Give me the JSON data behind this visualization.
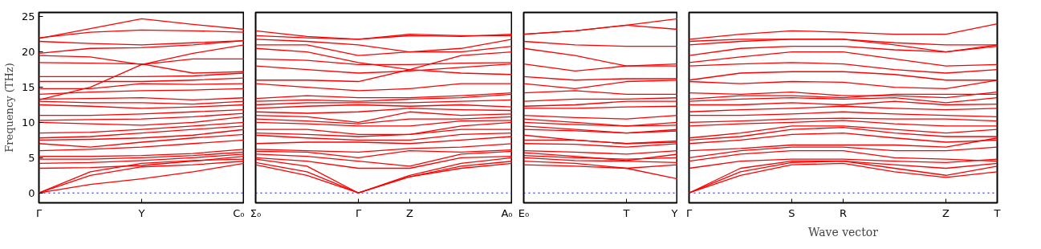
{
  "chart_data": [
    {
      "type": "line",
      "ylabel": "Frequency (THz)",
      "color": "#ff0000",
      "categories": [
        "Γ",
        null,
        "Y",
        null,
        "C₀"
      ],
      "ylim": [
        -1.4,
        25.6
      ],
      "yticks": [
        0,
        5,
        10,
        15,
        20,
        25
      ],
      "grid": false,
      "ref_lines": [
        {
          "axis": "y",
          "value": 0,
          "label": null,
          "color": "#0000ff",
          "line_style": "dotted"
        }
      ],
      "series": [
        {
          "values": [
            0,
            1.2,
            2.0,
            3.0,
            4.2
          ]
        },
        {
          "values": [
            0,
            2.5,
            3.7,
            4.0,
            4.5
          ]
        },
        {
          "values": [
            0,
            3.0,
            4.2,
            4.6,
            4.8
          ]
        },
        {
          "values": [
            3.5,
            3.6,
            3.9,
            4.5,
            5.2
          ]
        },
        {
          "values": [
            4.2,
            4.3,
            4.6,
            5.0,
            5.5
          ]
        },
        {
          "values": [
            4.8,
            4.8,
            5.0,
            5.3,
            5.8
          ]
        },
        {
          "values": [
            5.2,
            5.2,
            5.3,
            5.6,
            6.2
          ]
        },
        {
          "values": [
            6.0,
            6.2,
            6.5,
            7.0,
            7.5
          ]
        },
        {
          "values": [
            7.0,
            6.5,
            7.2,
            7.8,
            8.3
          ]
        },
        {
          "values": [
            7.5,
            7.6,
            7.8,
            8.2,
            9.0
          ]
        },
        {
          "values": [
            7.8,
            8.0,
            8.5,
            9.0,
            9.5
          ]
        },
        {
          "values": [
            8.5,
            8.6,
            9.0,
            9.5,
            10.0
          ]
        },
        {
          "values": [
            10.0,
            9.8,
            9.6,
            10.0,
            10.8
          ]
        },
        {
          "values": [
            10.3,
            10.4,
            10.5,
            10.8,
            11.3
          ]
        },
        {
          "values": [
            11.0,
            11.0,
            11.2,
            11.5,
            11.8
          ]
        },
        {
          "values": [
            12.5,
            12.3,
            12.0,
            12.2,
            12.5
          ]
        },
        {
          "values": [
            13.0,
            12.8,
            12.8,
            12.6,
            13.0
          ]
        },
        {
          "values": [
            13.3,
            13.4,
            13.5,
            13.2,
            13.5
          ]
        },
        {
          "values": [
            14.0,
            14.3,
            14.5,
            14.6,
            14.8
          ]
        },
        {
          "values": [
            14.8,
            14.8,
            15.5,
            15.4,
            15.5
          ]
        },
        {
          "values": [
            15.8,
            15.8,
            15.8,
            16.0,
            16.3
          ]
        },
        {
          "values": [
            16.5,
            16.5,
            16.5,
            16.6,
            17.0
          ]
        },
        {
          "values": [
            13.2,
            15.0,
            18.2,
            19.8,
            21.0
          ]
        },
        {
          "values": [
            18.5,
            18.4,
            18.3,
            17.0,
            17.2
          ]
        },
        {
          "values": [
            19.5,
            19.3,
            18.2,
            19.0,
            19.0
          ]
        },
        {
          "values": [
            19.8,
            20.5,
            20.6,
            21.0,
            21.6
          ]
        },
        {
          "values": [
            21.5,
            21.2,
            21.0,
            21.3,
            21.6
          ]
        },
        {
          "values": [
            22.0,
            22.8,
            23.1,
            23.0,
            22.8
          ]
        },
        {
          "values": [
            21.9,
            23.3,
            24.7,
            23.9,
            23.2
          ]
        }
      ]
    },
    {
      "type": "line",
      "color": "#ff0000",
      "categories": [
        "Σ₀",
        null,
        "Γ",
        "Z",
        null,
        "A₀"
      ],
      "ylim": [
        -1.4,
        25.6
      ],
      "yticks": [
        0,
        5,
        10,
        15,
        20,
        25
      ],
      "tick_labels": "x",
      "grid": false,
      "ref_lines": [
        {
          "axis": "y",
          "value": 0,
          "label": null,
          "color": "#0000ff",
          "line_style": "dotted"
        }
      ],
      "series": [
        {
          "values": [
            4.0,
            2.5,
            0,
            2.3,
            3.5,
            4.2
          ]
        },
        {
          "values": [
            4.3,
            3.0,
            0,
            2.3,
            3.8,
            4.5
          ]
        },
        {
          "values": [
            4.8,
            3.8,
            0,
            2.5,
            4.2,
            5.0
          ]
        },
        {
          "values": [
            5.0,
            4.5,
            3.5,
            3.5,
            5.0,
            5.2
          ]
        },
        {
          "values": [
            5.5,
            5.2,
            4.5,
            3.8,
            5.5,
            5.9
          ]
        },
        {
          "values": [
            5.9,
            5.8,
            5.0,
            6.0,
            5.8,
            6.1
          ]
        },
        {
          "values": [
            6.2,
            6.0,
            5.8,
            6.3,
            6.5,
            7.0
          ]
        },
        {
          "values": [
            7.0,
            7.2,
            7.2,
            7.0,
            7.5,
            8.0
          ]
        },
        {
          "values": [
            8.2,
            7.8,
            7.5,
            7.5,
            8.3,
            8.5
          ]
        },
        {
          "values": [
            8.5,
            8.3,
            8.0,
            8.3,
            9.0,
            9.0
          ]
        },
        {
          "values": [
            9.0,
            9.0,
            8.3,
            8.3,
            9.5,
            10.0
          ]
        },
        {
          "values": [
            10.0,
            9.8,
            9.5,
            9.5,
            10.2,
            10.3
          ]
        },
        {
          "values": [
            10.5,
            10.2,
            9.8,
            10.5,
            10.5,
            10.8
          ]
        },
        {
          "values": [
            11.0,
            10.8,
            10.0,
            11.5,
            11.0,
            11.2
          ]
        },
        {
          "values": [
            11.5,
            11.3,
            11.5,
            12.0,
            11.8,
            11.7
          ]
        },
        {
          "values": [
            12.0,
            12.3,
            12.5,
            12.3,
            12.5,
            12.2
          ]
        },
        {
          "values": [
            12.5,
            12.8,
            12.8,
            12.8,
            13.0,
            13.2
          ]
        },
        {
          "values": [
            13.0,
            13.2,
            13.0,
            13.3,
            13.5,
            14.0
          ]
        },
        {
          "values": [
            13.4,
            13.8,
            13.5,
            13.5,
            13.8,
            14.2
          ]
        },
        {
          "values": [
            15.5,
            15.0,
            14.5,
            14.8,
            15.5,
            15.5
          ]
        },
        {
          "values": [
            16.0,
            16.0,
            15.8,
            17.5,
            17.0,
            16.8
          ]
        },
        {
          "values": [
            18.0,
            17.5,
            17.0,
            17.3,
            17.8,
            18.3
          ]
        },
        {
          "values": [
            19.0,
            18.8,
            18.2,
            18.2,
            18.4,
            18.5
          ]
        },
        {
          "values": [
            20.5,
            20.0,
            18.5,
            17.5,
            19.5,
            20.0
          ]
        },
        {
          "values": [
            21.0,
            21.0,
            19.5,
            20.0,
            20.0,
            20.8
          ]
        },
        {
          "values": [
            21.8,
            21.5,
            21.0,
            20.0,
            20.5,
            21.8
          ]
        },
        {
          "values": [
            22.3,
            22.0,
            21.8,
            22.3,
            22.2,
            22.5
          ]
        },
        {
          "values": [
            23.0,
            22.2,
            21.8,
            22.5,
            22.3,
            22.3
          ]
        }
      ]
    },
    {
      "type": "line",
      "color": "#ff0000",
      "categories": [
        "E₀",
        null,
        "T",
        "Y"
      ],
      "ylim": [
        -1.4,
        25.6
      ],
      "yticks": [
        0,
        5,
        10,
        15,
        20,
        25
      ],
      "tick_labels": "x",
      "grid": false,
      "ref_lines": [
        {
          "axis": "y",
          "value": 0,
          "label": null,
          "color": "#0000ff",
          "line_style": "dotted"
        }
      ],
      "series": [
        {
          "values": [
            4.0,
            3.8,
            3.5,
            2.0
          ]
        },
        {
          "values": [
            4.5,
            4.2,
            3.5,
            4.0
          ]
        },
        {
          "values": [
            5.0,
            4.6,
            4.5,
            4.3
          ]
        },
        {
          "values": [
            5.3,
            5.0,
            4.8,
            5.0
          ]
        },
        {
          "values": [
            5.7,
            5.2,
            4.6,
            5.5
          ]
        },
        {
          "values": [
            6.0,
            5.8,
            5.5,
            6.0
          ]
        },
        {
          "values": [
            7.0,
            6.9,
            6.5,
            7.0
          ]
        },
        {
          "values": [
            7.5,
            7.5,
            7.0,
            7.4
          ]
        },
        {
          "values": [
            8.2,
            7.5,
            7.0,
            7.2
          ]
        },
        {
          "values": [
            9.0,
            8.8,
            8.5,
            9.0
          ]
        },
        {
          "values": [
            9.5,
            9.0,
            8.5,
            8.8
          ]
        },
        {
          "values": [
            10.0,
            9.7,
            9.5,
            10.0
          ]
        },
        {
          "values": [
            10.5,
            10.0,
            9.5,
            9.6
          ]
        },
        {
          "values": [
            11.0,
            10.7,
            10.5,
            11.0
          ]
        },
        {
          "values": [
            12.0,
            12.0,
            12.2,
            12.3
          ]
        },
        {
          "values": [
            12.3,
            12.5,
            13.0,
            13.0
          ]
        },
        {
          "values": [
            13.0,
            13.3,
            13.3,
            13.5
          ]
        },
        {
          "values": [
            14.2,
            14.5,
            14.0,
            14.0
          ]
        },
        {
          "values": [
            15.5,
            14.8,
            15.8,
            16.0
          ]
        },
        {
          "values": [
            16.5,
            16.0,
            16.2,
            16.2
          ]
        },
        {
          "values": [
            18.3,
            17.3,
            18.0,
            18.3
          ]
        },
        {
          "values": [
            20.5,
            19.5,
            18.0,
            18.0
          ]
        },
        {
          "values": [
            21.5,
            21.0,
            20.8,
            20.8
          ]
        },
        {
          "values": [
            22.5,
            23.0,
            23.8,
            23.2
          ]
        },
        {
          "values": [
            22.5,
            23.0,
            23.8,
            24.7
          ]
        }
      ]
    },
    {
      "type": "line",
      "color": "#ff0000",
      "xlabel": "Wave vector",
      "categories": [
        "Γ",
        null,
        "S",
        "R",
        null,
        "Z",
        "T"
      ],
      "ylim": [
        -1.4,
        25.6
      ],
      "yticks": [
        0,
        5,
        10,
        15,
        20,
        25
      ],
      "tick_labels": "x",
      "grid": false,
      "ref_lines": [
        {
          "axis": "y",
          "value": 0,
          "label": null,
          "color": "#0000ff",
          "line_style": "dotted"
        }
      ],
      "series": [
        {
          "values": [
            0,
            2.5,
            4.0,
            4.2,
            3.0,
            2.2,
            3.0
          ]
        },
        {
          "values": [
            0,
            3.0,
            4.3,
            4.5,
            3.5,
            2.5,
            3.8
          ]
        },
        {
          "values": [
            0,
            3.5,
            4.5,
            4.5,
            4.0,
            3.5,
            4.2
          ]
        },
        {
          "values": [
            3.5,
            4.5,
            4.8,
            4.8,
            4.5,
            4.3,
            4.8
          ]
        },
        {
          "values": [
            4.5,
            5.5,
            6.0,
            6.0,
            5.0,
            4.8,
            4.5
          ]
        },
        {
          "values": [
            5.0,
            6.0,
            6.5,
            6.5,
            6.0,
            6.0,
            6.5
          ]
        },
        {
          "values": [
            6.0,
            6.3,
            6.8,
            6.8,
            6.8,
            6.5,
            7.8
          ]
        },
        {
          "values": [
            7.0,
            7.5,
            8.3,
            8.5,
            7.8,
            7.2,
            7.5
          ]
        },
        {
          "values": [
            7.5,
            8.0,
            9.0,
            9.3,
            8.5,
            8.0,
            8.0
          ]
        },
        {
          "values": [
            7.8,
            8.5,
            9.5,
            9.5,
            9.0,
            8.5,
            9.0
          ]
        },
        {
          "values": [
            9.5,
            9.8,
            10.0,
            10.3,
            9.8,
            9.5,
            9.5
          ]
        },
        {
          "values": [
            10.0,
            10.2,
            10.5,
            10.6,
            10.5,
            10.5,
            10.2
          ]
        },
        {
          "values": [
            11.0,
            11.0,
            11.2,
            11.5,
            11.2,
            11.0,
            10.8
          ]
        },
        {
          "values": [
            11.5,
            11.8,
            12.0,
            12.3,
            12.0,
            11.8,
            12.0
          ]
        },
        {
          "values": [
            12.5,
            12.5,
            12.8,
            12.5,
            13.0,
            12.5,
            12.6
          ]
        },
        {
          "values": [
            13.0,
            13.3,
            13.5,
            13.3,
            13.5,
            12.8,
            13.5
          ]
        },
        {
          "values": [
            13.3,
            13.8,
            13.8,
            13.5,
            14.0,
            14.0,
            14.0
          ]
        },
        {
          "values": [
            14.2,
            14.0,
            14.3,
            13.8,
            13.8,
            13.5,
            14.3
          ]
        },
        {
          "values": [
            15.8,
            15.5,
            15.8,
            15.7,
            15.0,
            14.8,
            16.0
          ]
        },
        {
          "values": [
            16.0,
            17.0,
            17.2,
            17.2,
            16.8,
            16.0,
            16.0
          ]
        },
        {
          "values": [
            18.0,
            18.3,
            18.5,
            18.3,
            17.5,
            17.0,
            17.5
          ]
        },
        {
          "values": [
            18.5,
            19.3,
            20.0,
            20.0,
            19.0,
            18.0,
            18.2
          ]
        },
        {
          "values": [
            19.5,
            20.5,
            20.8,
            20.8,
            20.3,
            20.0,
            20.8
          ]
        },
        {
          "values": [
            21.0,
            21.5,
            21.8,
            21.8,
            21.3,
            21.0,
            21.0
          ]
        },
        {
          "values": [
            21.8,
            22.5,
            23.0,
            22.8,
            22.5,
            22.5,
            24.0
          ]
        },
        {
          "values": [
            21.5,
            21.8,
            21.8,
            21.8,
            21.0,
            20.0,
            21.0
          ]
        }
      ]
    }
  ]
}
